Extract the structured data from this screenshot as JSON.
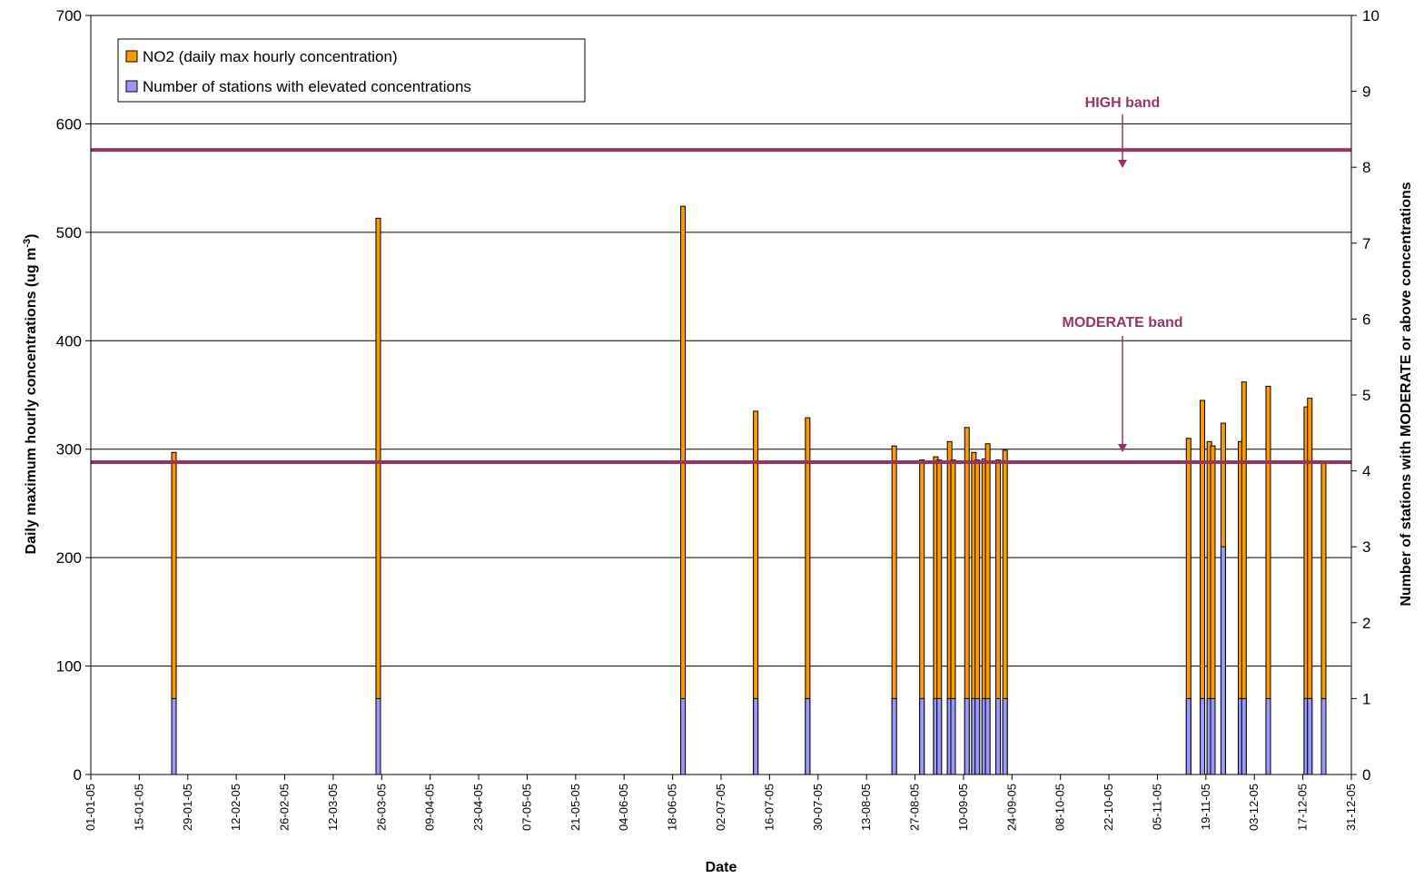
{
  "chart_data": {
    "type": "bar",
    "xlabel": "Date",
    "ylabel_prefix": "Daily maximum hourly concentrations (ug m",
    "ylabel_sup": "-3",
    "ylabel_suffix": ")",
    "y2label": "Number of stations with MODERATE or above concentrations",
    "ylim": [
      0,
      700
    ],
    "y2lim": [
      0,
      10
    ],
    "yticks": [
      0,
      100,
      200,
      300,
      400,
      500,
      600,
      700
    ],
    "y2ticks": [
      0,
      1,
      2,
      3,
      4,
      5,
      6,
      7,
      8,
      9,
      10
    ],
    "x_tick_labels": [
      "01-01-05",
      "15-01-05",
      "29-01-05",
      "12-02-05",
      "26-02-05",
      "12-03-05",
      "26-03-05",
      "09-04-05",
      "23-04-05",
      "07-05-05",
      "21-05-05",
      "04-06-05",
      "18-06-05",
      "02-07-05",
      "16-07-05",
      "30-07-05",
      "13-08-05",
      "27-08-05",
      "10-09-05",
      "24-09-05",
      "08-10-05",
      "22-10-05",
      "05-11-05",
      "19-11-05",
      "03-12-05",
      "17-12-05",
      "31-12-05"
    ],
    "legend_position": "top-left",
    "grid": "horizontal",
    "colors": {
      "no2": "#ff9900",
      "stations": "#9999ff",
      "band": "#993366"
    },
    "series": [
      {
        "name": "NO2 (daily max hourly concentration)",
        "axis": "left"
      },
      {
        "name": "Number of stations with elevated concentrations",
        "axis": "right"
      }
    ],
    "days": [
      24,
      83,
      171,
      192,
      207,
      232,
      240,
      244,
      245,
      248,
      249,
      253,
      255,
      256,
      258,
      259,
      262,
      264,
      317,
      321,
      323,
      324,
      327,
      332,
      333,
      340,
      351,
      352,
      356
    ],
    "no2_values": [
      297,
      513,
      524,
      335,
      329,
      303,
      290,
      293,
      290,
      307,
      290,
      320,
      297,
      290,
      291,
      305,
      290,
      299,
      310,
      345,
      307,
      303,
      324,
      307,
      362,
      358,
      339,
      347,
      288
    ],
    "station_counts": [
      1,
      1,
      1,
      1,
      1,
      1,
      1,
      1,
      1,
      1,
      1,
      1,
      1,
      1,
      1,
      1,
      1,
      1,
      1,
      1,
      1,
      1,
      3,
      1,
      1,
      1,
      1,
      1,
      1
    ],
    "bands": [
      {
        "label": "HIGH band",
        "value": 576
      },
      {
        "label": "MODERATE band",
        "value": 288
      }
    ]
  }
}
